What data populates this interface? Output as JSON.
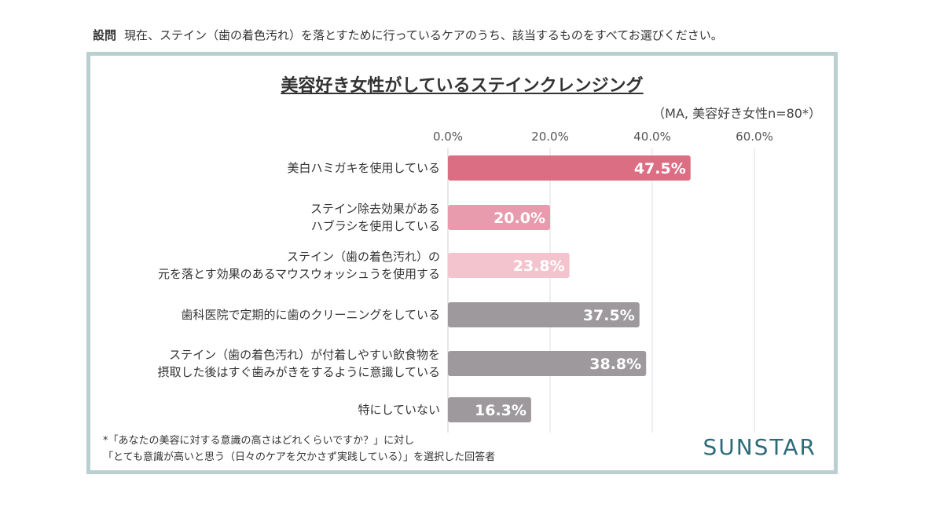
{
  "question": {
    "tag": "設問",
    "text": "現在、ステイン（歯の着色汚れ）を落とすために行っているケアのうち、該当するものをすべてお選びください。"
  },
  "footnote": [
    "*「あなたの美容に対する意識の高さはどれくらいですか？」に対し",
    "「とても意識が高いと思う（日々のケアを欠かさず実践している）」を選択した回答者"
  ],
  "logo": "SUNSTAR",
  "chart_data": {
    "type": "bar",
    "orientation": "horizontal",
    "title": "美容好き女性がしているステインクレンジング",
    "subtitle": "（MA, 美容好き女性n=80*）",
    "xlim": [
      0,
      60
    ],
    "ticks": [
      0,
      20,
      40,
      60
    ],
    "tick_labels": [
      "0.0%",
      "20.0%",
      "40.0%",
      "60.0%"
    ],
    "grid": true,
    "categories": [
      [
        "美白ハミガキを使用している"
      ],
      [
        "ステイン除去効果がある",
        "ハブラシを使用している"
      ],
      [
        "ステイン（歯の着色汚れ）の",
        "元を落とす効果のあるマウスウォッシュうを使用する"
      ],
      [
        "歯科医院で定期的に歯のクリーニングをしている"
      ],
      [
        "ステイン（歯の着色汚れ）が付着しやすい飲食物を",
        "摂取した後はすぐ歯みがきをするように意識している"
      ],
      [
        "特にしていない"
      ]
    ],
    "values": [
      47.5,
      20.0,
      23.8,
      37.5,
      38.8,
      16.3
    ],
    "data_labels": [
      "47.5%",
      "20.0%",
      "23.8%",
      "37.5%",
      "38.8%",
      "16.3%"
    ],
    "colors": [
      "#dc6e84",
      "#e89bac",
      "#f3c4ce",
      "#9d999c",
      "#9d999c",
      "#9d999c"
    ]
  }
}
